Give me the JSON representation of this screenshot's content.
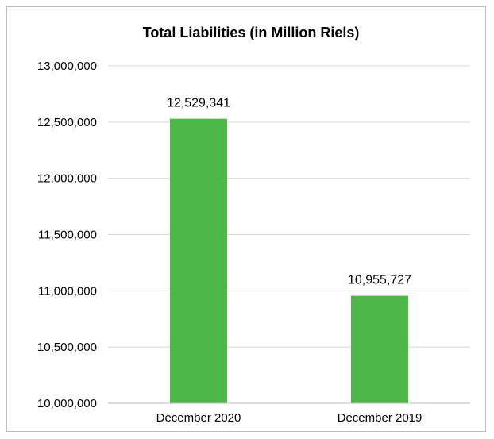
{
  "chart_data": {
    "type": "bar",
    "title": "Total Liabilities (in Million Riels)",
    "categories": [
      "December 2020",
      "December 2019"
    ],
    "values": [
      12529341,
      10955727
    ],
    "data_labels": [
      "12,529,341",
      "10,955,727"
    ],
    "ylim": [
      10000000,
      13000000
    ],
    "yticks": [
      10000000,
      10500000,
      11000000,
      11500000,
      12000000,
      12500000,
      13000000
    ],
    "ytick_labels": [
      "10,000,000",
      "10,500,000",
      "11,000,000",
      "11,500,000",
      "12,000,000",
      "12,500,000",
      "13,000,000"
    ],
    "grid": true,
    "legend": "none",
    "bar_color": "#4db848"
  }
}
